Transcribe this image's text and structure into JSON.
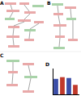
{
  "panels": [
    {
      "label": "A"
    },
    {
      "label": "B"
    },
    {
      "label": "C"
    },
    {
      "label": "D"
    }
  ],
  "chart_data": {
    "type": "bar",
    "categories": [
      null,
      null,
      null,
      null
    ],
    "values": [
      0.9,
      1.0,
      0.95,
      0.55
    ],
    "colors": [
      "#3b4ea8",
      "#c0392b",
      "#3b4ea8",
      "#c0392b"
    ],
    "ylim": [
      0,
      1.5
    ],
    "yticks": [
      0,
      0.5,
      1,
      1.5
    ],
    "grid": false,
    "tick_labels": false
  }
}
